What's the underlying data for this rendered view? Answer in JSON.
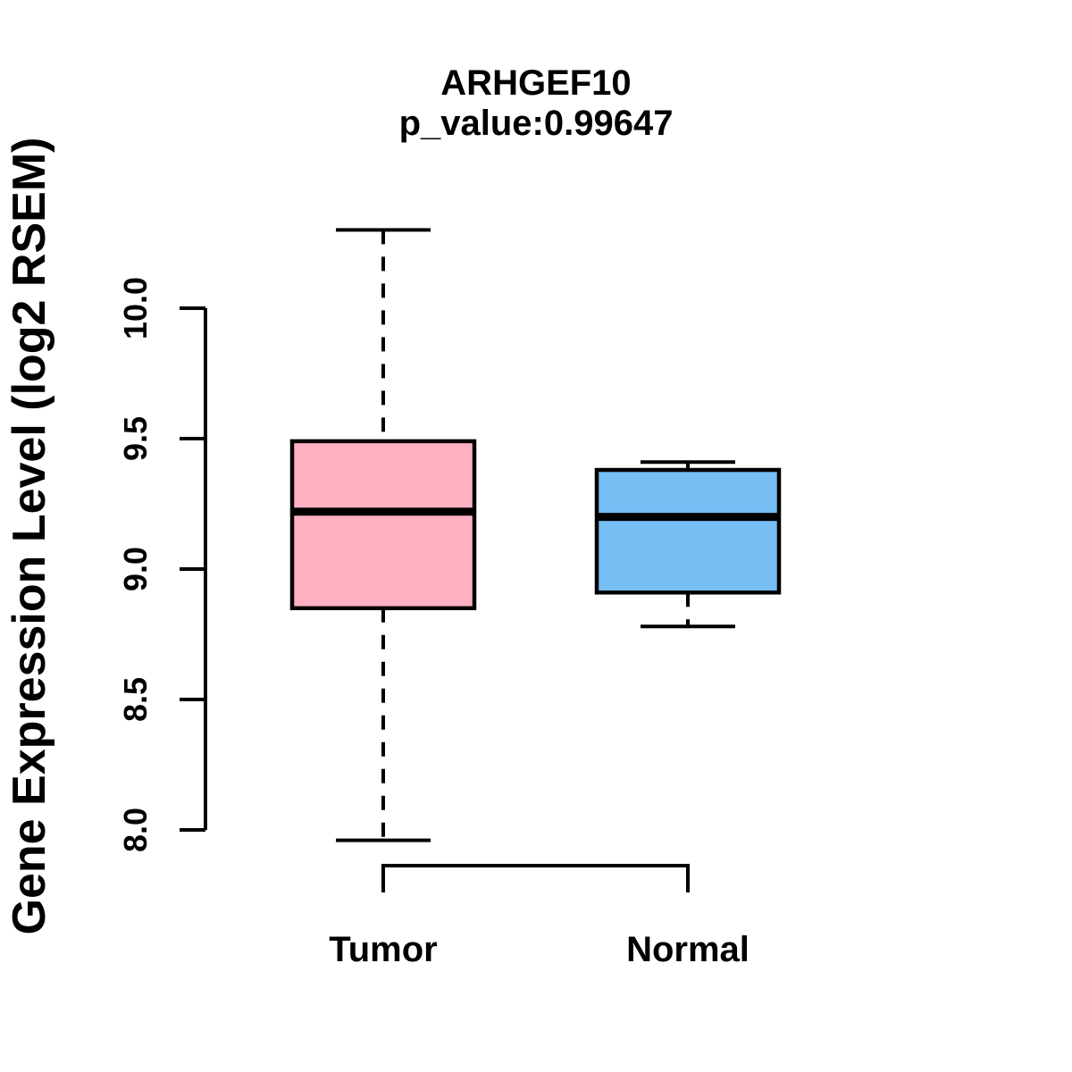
{
  "chart_data": {
    "type": "boxplot",
    "title": "ARHGEF10",
    "subtitle": "p_value:0.99647",
    "p_value": "0.99647",
    "ylabel": "Gene Expression Level (log2 RSEM)",
    "xlabel": "",
    "ylim": [
      8.0,
      10.0
    ],
    "yticks": [
      8.0,
      8.5,
      9.0,
      9.5,
      10.0
    ],
    "ytick_labels": [
      "8.0",
      "8.5",
      "9.0",
      "9.5",
      "10.0"
    ],
    "categories": [
      "Tumor",
      "Normal"
    ],
    "series": [
      {
        "name": "Tumor",
        "color": "#FFB0C2",
        "whisker_low": 7.96,
        "q1": 8.85,
        "median": 9.22,
        "q3": 9.49,
        "whisker_high": 10.3
      },
      {
        "name": "Normal",
        "color": "#77BEF5",
        "whisker_low": 8.78,
        "q1": 8.91,
        "median": 9.2,
        "q3": 9.38,
        "whisker_high": 9.41
      }
    ],
    "colors": {
      "tumor_fill": "#FFB0C2",
      "normal_fill": "#77BEF5",
      "line": "#000000",
      "background": "#ffffff"
    },
    "whisker_style": "dashed",
    "grid": false,
    "legend_position": "none"
  }
}
